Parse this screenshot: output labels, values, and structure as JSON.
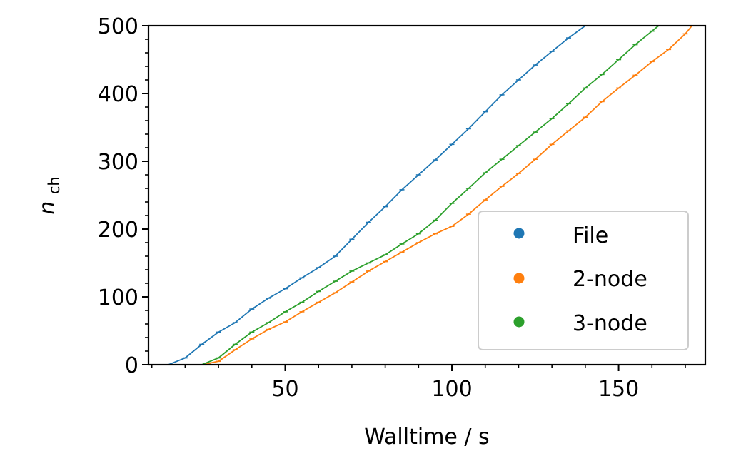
{
  "chart_data": {
    "type": "scatter",
    "xlabel": "Walltime / s",
    "ylabel_main": "n",
    "ylabel_sub": "ch",
    "xlim": [
      9,
      176
    ],
    "ylim": [
      0,
      500
    ],
    "x_ticks": [
      50,
      100,
      150
    ],
    "x_tick_labels": [
      "50",
      "100",
      "150"
    ],
    "x_minor_step": 10,
    "y_ticks": [
      0,
      100,
      200,
      300,
      400,
      500
    ],
    "y_tick_labels": [
      "0",
      "100",
      "200",
      "300",
      "400",
      "500"
    ],
    "y_minor_step": 20,
    "grid": false,
    "legend_position": "lower right",
    "series": [
      {
        "name": "File",
        "color": "#1f77b4",
        "points": [
          [
            15,
            0
          ],
          [
            20,
            10
          ],
          [
            25,
            30
          ],
          [
            30,
            48
          ],
          [
            35,
            62
          ],
          [
            40,
            82
          ],
          [
            45,
            98
          ],
          [
            50,
            112
          ],
          [
            55,
            128
          ],
          [
            60,
            143
          ],
          [
            65,
            160
          ],
          [
            70,
            185
          ],
          [
            75,
            210
          ],
          [
            80,
            233
          ],
          [
            85,
            258
          ],
          [
            90,
            280
          ],
          [
            95,
            302
          ],
          [
            100,
            325
          ],
          [
            105,
            348
          ],
          [
            110,
            373
          ],
          [
            115,
            398
          ],
          [
            120,
            420
          ],
          [
            125,
            442
          ],
          [
            130,
            462
          ],
          [
            135,
            482
          ],
          [
            140,
            500
          ]
        ]
      },
      {
        "name": "2-node",
        "color": "#ff7f0e",
        "points": [
          [
            27,
            2
          ],
          [
            30,
            5
          ],
          [
            35,
            22
          ],
          [
            40,
            38
          ],
          [
            45,
            52
          ],
          [
            50,
            63
          ],
          [
            55,
            78
          ],
          [
            60,
            92
          ],
          [
            65,
            106
          ],
          [
            70,
            122
          ],
          [
            75,
            138
          ],
          [
            80,
            152
          ],
          [
            85,
            166
          ],
          [
            90,
            180
          ],
          [
            95,
            193
          ],
          [
            100,
            204
          ],
          [
            105,
            222
          ],
          [
            110,
            243
          ],
          [
            115,
            263
          ],
          [
            120,
            282
          ],
          [
            125,
            303
          ],
          [
            130,
            325
          ],
          [
            135,
            345
          ],
          [
            140,
            365
          ],
          [
            145,
            388
          ],
          [
            150,
            408
          ],
          [
            155,
            427
          ],
          [
            160,
            447
          ],
          [
            165,
            465
          ],
          [
            170,
            488
          ],
          [
            172,
            500
          ]
        ]
      },
      {
        "name": "3-node",
        "color": "#2ca02c",
        "points": [
          [
            25,
            0
          ],
          [
            30,
            10
          ],
          [
            35,
            30
          ],
          [
            40,
            48
          ],
          [
            45,
            62
          ],
          [
            50,
            78
          ],
          [
            55,
            92
          ],
          [
            60,
            108
          ],
          [
            65,
            123
          ],
          [
            70,
            138
          ],
          [
            75,
            150
          ],
          [
            80,
            162
          ],
          [
            85,
            178
          ],
          [
            90,
            193
          ],
          [
            95,
            213
          ],
          [
            100,
            238
          ],
          [
            105,
            260
          ],
          [
            110,
            283
          ],
          [
            115,
            303
          ],
          [
            120,
            323
          ],
          [
            125,
            343
          ],
          [
            130,
            363
          ],
          [
            135,
            385
          ],
          [
            140,
            408
          ],
          [
            145,
            428
          ],
          [
            150,
            450
          ],
          [
            155,
            472
          ],
          [
            160,
            492
          ],
          [
            162,
            500
          ]
        ]
      }
    ]
  }
}
